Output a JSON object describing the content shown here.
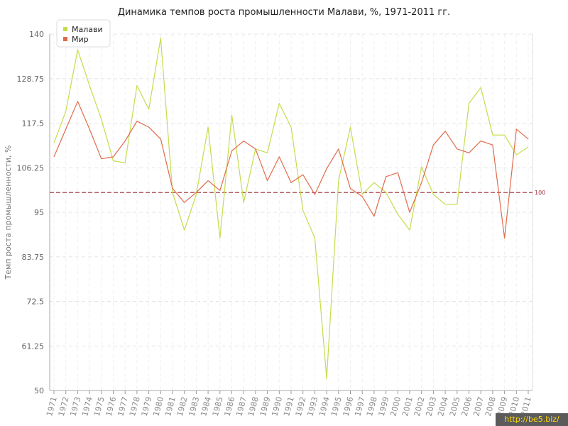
{
  "title": "Динамика темпов роста промышленности Малави, %, 1971-2011 гг.",
  "watermark": "http://be5.biz/",
  "chart_data": {
    "type": "line",
    "title": "Динамика темпов роста промышленности Малави, %, 1971-2011 гг.",
    "xlabel": "",
    "ylabel": "Темп роста промышленности, %",
    "ylim": [
      50,
      140
    ],
    "yticks": [
      "50",
      "61.25",
      "72.5",
      "83.75",
      "95",
      "106.25",
      "117.5",
      "128.75",
      "140"
    ],
    "x": [
      "1971",
      "1972",
      "1973",
      "1974",
      "1975",
      "1976",
      "1977",
      "1978",
      "1979",
      "1980",
      "1981",
      "1982",
      "1983",
      "1984",
      "1985",
      "1986",
      "1987",
      "1988",
      "1989",
      "1990",
      "1991",
      "1992",
      "1993",
      "1994",
      "1995",
      "1996",
      "1997",
      "1998",
      "1999",
      "2000",
      "2001",
      "2002",
      "2003",
      "2004",
      "2005",
      "2006",
      "2007",
      "2008",
      "2009",
      "2010",
      "2011"
    ],
    "series": [
      {
        "name": "Малави",
        "color": "#c5dc4c",
        "values": [
          112.5,
          120.5,
          136,
          127,
          118.5,
          108,
          107.5,
          127,
          121,
          139,
          100,
          90.5,
          99.5,
          116.5,
          88.5,
          119.5,
          97.5,
          111,
          110,
          122.5,
          116.5,
          95.5,
          88.5,
          53,
          103,
          116.5,
          99.5,
          102.5,
          100,
          94.5,
          90.5,
          106.5,
          99.5,
          97,
          97,
          122.5,
          126.5,
          114.5,
          114.5,
          109.5,
          111.5
        ]
      },
      {
        "name": "Мир",
        "color": "#e06b4a",
        "values": [
          109,
          116,
          123,
          116,
          108.5,
          109,
          113,
          118,
          116.5,
          113.5,
          101,
          97.5,
          100,
          103,
          100.5,
          110.5,
          113,
          111,
          103,
          109,
          102.5,
          104.5,
          99.5,
          106,
          111,
          101,
          99,
          94,
          104,
          105,
          95,
          102.5,
          112,
          115.5,
          111,
          110,
          113,
          112,
          88.5,
          116,
          113.5
        ]
      }
    ],
    "reference_line": {
      "value": 100,
      "label": "100",
      "color": "#a0303a"
    },
    "grid": true,
    "legend": "top-left"
  }
}
